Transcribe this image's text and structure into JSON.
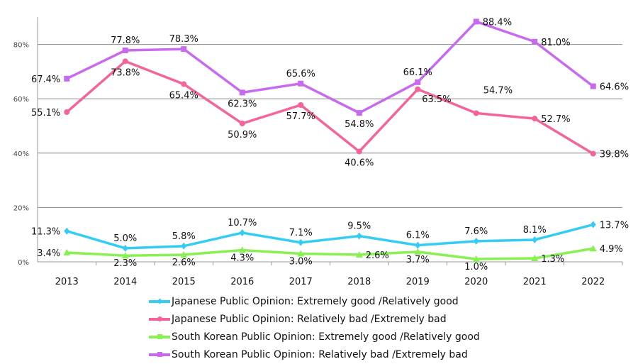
{
  "chart_data": {
    "type": "line",
    "categories": [
      "2013",
      "2014",
      "2015",
      "2016",
      "2017",
      "2018",
      "2019",
      "2020",
      "2021",
      "2022"
    ],
    "ylim": [
      0,
      90
    ],
    "yticks": [
      0,
      20,
      40,
      60,
      80
    ],
    "ytick_labels": [
      "0%",
      "20%",
      "40%",
      "60%",
      "80%"
    ],
    "grid": true,
    "legend_position": "bottom",
    "series": [
      {
        "name": "Japanese Public Opinion: Extremely good /Relatively good",
        "color": "#33ccf5",
        "marker": "diamond",
        "values": [
          11.3,
          5.0,
          5.8,
          10.7,
          7.1,
          9.5,
          6.1,
          7.6,
          8.1,
          13.7
        ],
        "labels": [
          "11.3%",
          "5.0%",
          "5.8%",
          "10.7%",
          "7.1%",
          "9.5%",
          "6.1%",
          "7.6%",
          "8.1%",
          "13.7%"
        ]
      },
      {
        "name": "Japanese Public Opinion:  Relatively bad /Extremely bad",
        "color": "#f4649a",
        "marker": "circle",
        "values": [
          55.1,
          73.8,
          65.4,
          50.9,
          57.7,
          40.6,
          63.5,
          54.7,
          52.7,
          39.8
        ],
        "labels": [
          "55.1%",
          "73.8%",
          "65.4%",
          "50.9%",
          "57.7%",
          "40.6%",
          "63.5%",
          "54.7%",
          "52.7%",
          "39.8%"
        ]
      },
      {
        "name": "South Korean Public Opinion: Extremely good /Relatively good",
        "color": "#88f050",
        "marker": "triangle",
        "values": [
          3.4,
          2.3,
          2.6,
          4.3,
          3.0,
          2.6,
          3.7,
          1.0,
          1.3,
          4.9
        ],
        "labels": [
          "3.4%",
          "2.3%",
          "2.6%",
          "4.3%",
          "3.0%",
          "2.6%",
          "3.7%",
          "1.0%",
          "1.3%",
          "4.9%"
        ]
      },
      {
        "name": "South Korean Public Opinion:  Relatively bad /Extremely bad",
        "color": "#c86af0",
        "marker": "square",
        "values": [
          67.4,
          77.8,
          78.3,
          62.3,
          65.6,
          54.8,
          66.1,
          88.4,
          81.0,
          64.6
        ],
        "labels": [
          "67.4%",
          "77.8%",
          "78.3%",
          "62.3%",
          "65.6%",
          "54.8%",
          "66.1%",
          "88.4%",
          "81.0%",
          "64.6%"
        ]
      }
    ]
  }
}
